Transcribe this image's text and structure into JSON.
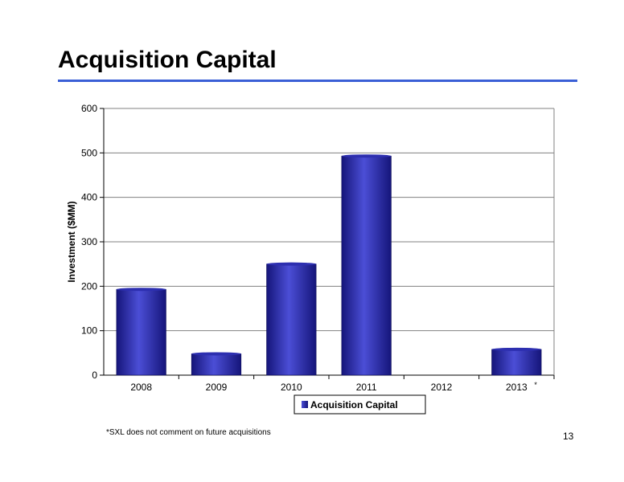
{
  "page": {
    "title": "Acquisition Capital",
    "footnote": "*SXL does not comment on future acquisitions",
    "page_number": "13"
  },
  "colors": {
    "title_rule": "#3a5fd6",
    "bar_light": "#4b4ed6",
    "bar_dark": "#15157a",
    "grid": "#808080"
  },
  "chart_data": {
    "type": "bar",
    "title": "",
    "xlabel": "",
    "ylabel": "Investment ($MM)",
    "categories": [
      "2008",
      "2009",
      "2010",
      "2011",
      "2012",
      "2013"
    ],
    "series": [
      {
        "name": "Acquisition Capital",
        "values": [
          193,
          48,
          250,
          493,
          0,
          58
        ]
      }
    ],
    "ylim": [
      0,
      600
    ],
    "yticks": [
      0,
      100,
      200,
      300,
      400,
      500,
      600
    ],
    "grid": true,
    "legend": "bottom",
    "annotations": [
      {
        "category": "2013",
        "text": "*"
      }
    ]
  }
}
